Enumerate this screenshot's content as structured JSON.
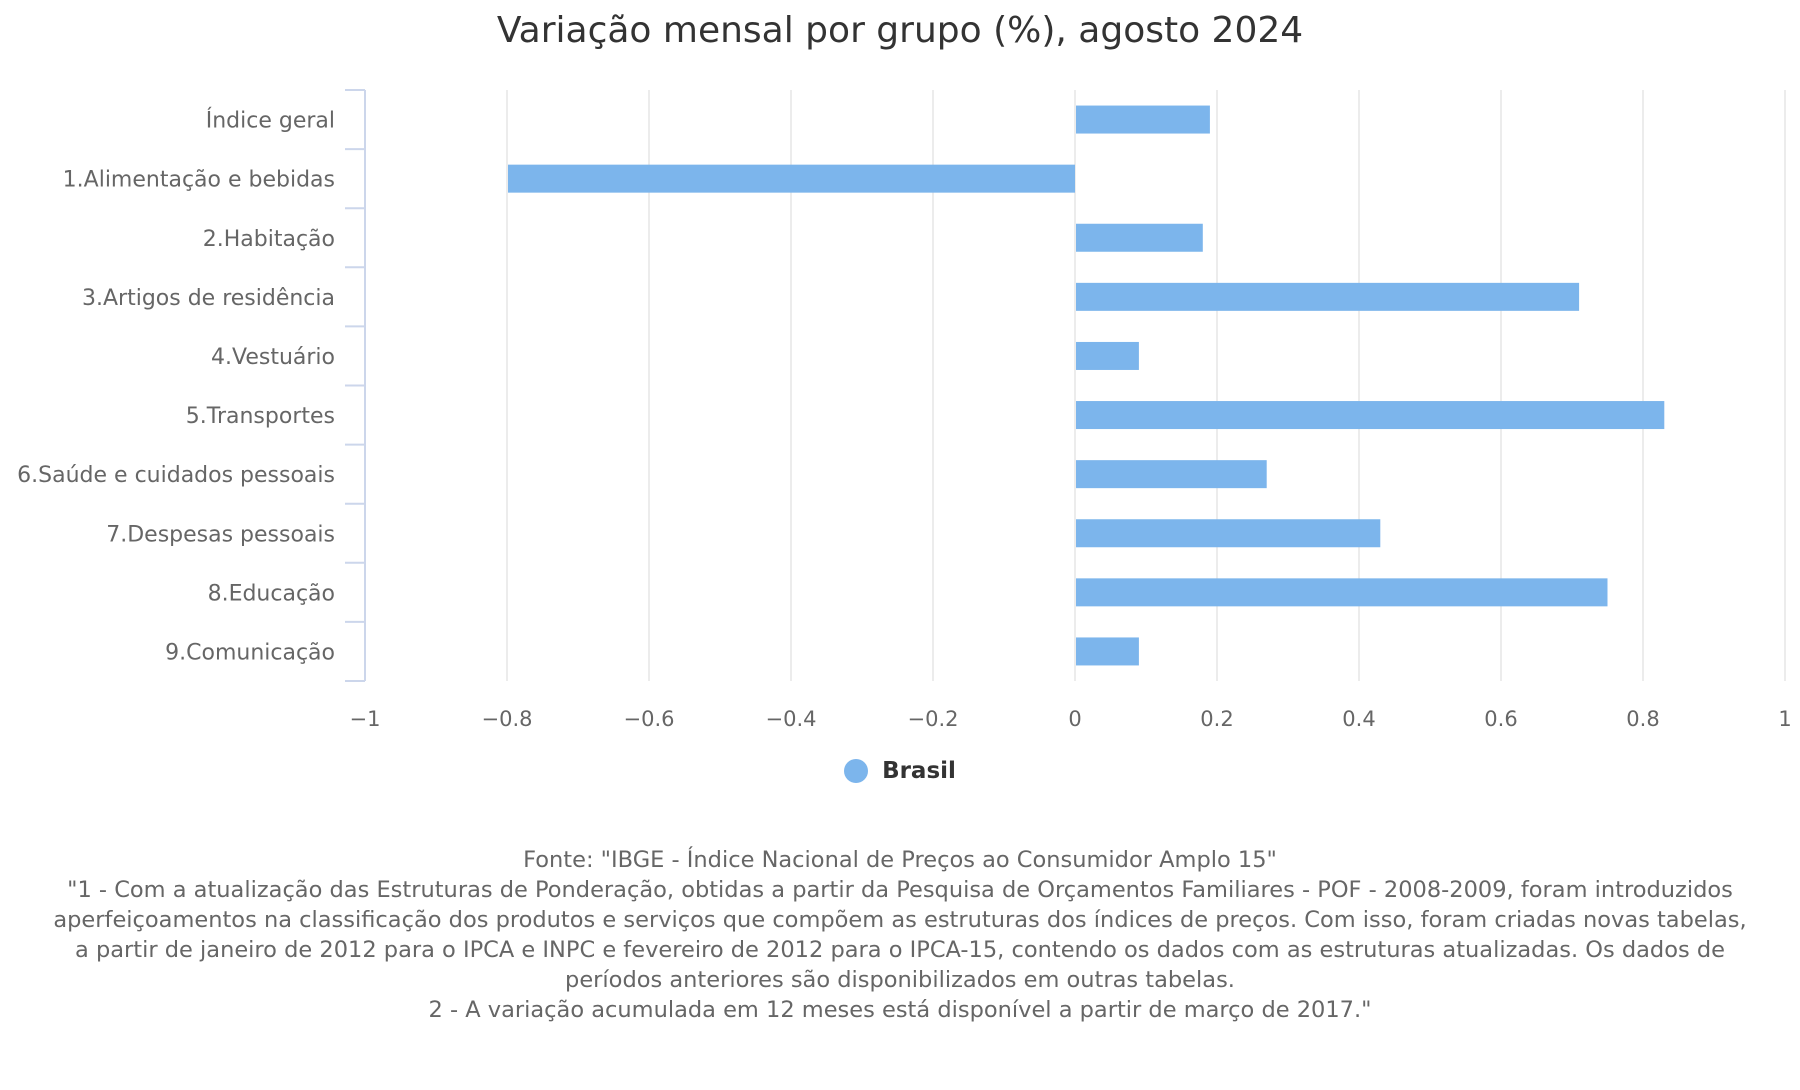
{
  "chart_data": {
    "type": "bar",
    "orientation": "horizontal",
    "title": "Variação mensal por grupo (%), agosto 2024",
    "categories": [
      "Índice geral",
      "1.Alimentação e bebidas",
      "2.Habitação",
      "3.Artigos de residência",
      "4.Vestuário",
      "5.Transportes",
      "6.Saúde e cuidados pessoais",
      "7.Despesas pessoais",
      "8.Educação",
      "9.Comunicação"
    ],
    "series": [
      {
        "name": "Brasil",
        "color": "#7cb5ec",
        "values": [
          0.19,
          -0.8,
          0.18,
          0.71,
          0.09,
          0.83,
          0.27,
          0.43,
          0.75,
          0.09
        ]
      }
    ],
    "xlim": [
      -1,
      1
    ],
    "ticks": [
      {
        "value": -1,
        "label": "−1"
      },
      {
        "value": -0.8,
        "label": "−0.8"
      },
      {
        "value": -0.6,
        "label": "−0.6"
      },
      {
        "value": -0.4,
        "label": "−0.4"
      },
      {
        "value": -0.2,
        "label": "−0.2"
      },
      {
        "value": 0,
        "label": "0"
      },
      {
        "value": 0.2,
        "label": "0.2"
      },
      {
        "value": 0.4,
        "label": "0.4"
      },
      {
        "value": 0.6,
        "label": "0.6"
      },
      {
        "value": 0.8,
        "label": "0.8"
      },
      {
        "value": 1,
        "label": "1"
      }
    ],
    "grid": true,
    "legend_position": "bottom-center"
  },
  "caption": {
    "source": "Fonte: \"IBGE - Índice Nacional de Preços ao Consumidor Amplo 15\"",
    "note_lines": [
      "\"1 - Com a atualização das Estruturas de Ponderação, obtidas a partir da Pesquisa de Orçamentos Familiares - POF - 2008-2009, foram introduzidos",
      "aperfeiçoamentos na classificação dos produtos e serviços que compõem as estruturas dos índices de preços. Com isso, foram criadas novas tabelas,",
      "a partir de janeiro de 2012 para o IPCA e INPC e fevereiro de 2012 para o IPCA-15, contendo os dados com as estruturas atualizadas. Os dados de",
      "períodos anteriores são disponibilizados em outras tabelas.",
      "2 - A variação acumulada em 12 meses está disponível a partir de março de 2017.\""
    ]
  },
  "colors": {
    "bar": "#7cb5ec",
    "grid": "#e6e6e6",
    "axis": "#ccd6eb"
  }
}
